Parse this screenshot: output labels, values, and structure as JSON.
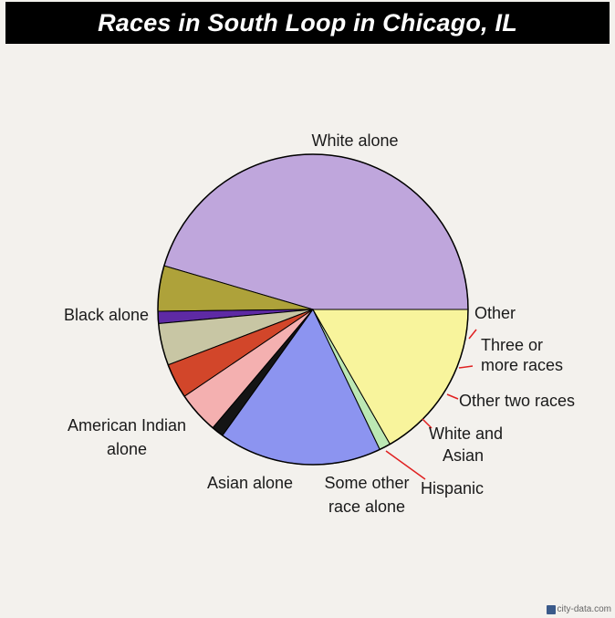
{
  "chart_data": {
    "type": "pie",
    "title": "Races in South Loop in Chicago, IL",
    "categories": [
      "White alone",
      "Other",
      "Three or more races",
      "Other two races",
      "White and Asian",
      "Hispanic",
      "Some other race alone",
      "Asian alone",
      "American Indian alone",
      "Black alone"
    ],
    "values": [
      50.0,
      5.2,
      1.4,
      4.8,
      4.0,
      4.8,
      1.4,
      18.7,
      1.3,
      18.4
    ],
    "colors": [
      "#bfa6dc",
      "#aea23a",
      "#5e2aa4",
      "#c8c6a4",
      "#d2462a",
      "#f4b0b0",
      "#141414",
      "#8c94f0",
      "#bce8b4",
      "#f8f49c"
    ],
    "labels": [
      {
        "lines": [
          "White alone"
        ]
      },
      {
        "lines": [
          "Other"
        ]
      },
      {
        "lines": [
          "Three or",
          "more races"
        ]
      },
      {
        "lines": [
          "Other two races"
        ]
      },
      {
        "lines": [
          "White and",
          "Asian"
        ]
      },
      {
        "lines": [
          "Hispanic"
        ]
      },
      {
        "lines": [
          "Some other",
          "race alone"
        ]
      },
      {
        "lines": [
          "Asian alone"
        ]
      },
      {
        "lines": [
          "American Indian",
          "alone"
        ]
      },
      {
        "lines": [
          "Black alone"
        ]
      }
    ],
    "leader_color": "#e02020"
  },
  "watermark": {
    "text": "city-data.com",
    "icon": "city-data-logo-icon"
  }
}
